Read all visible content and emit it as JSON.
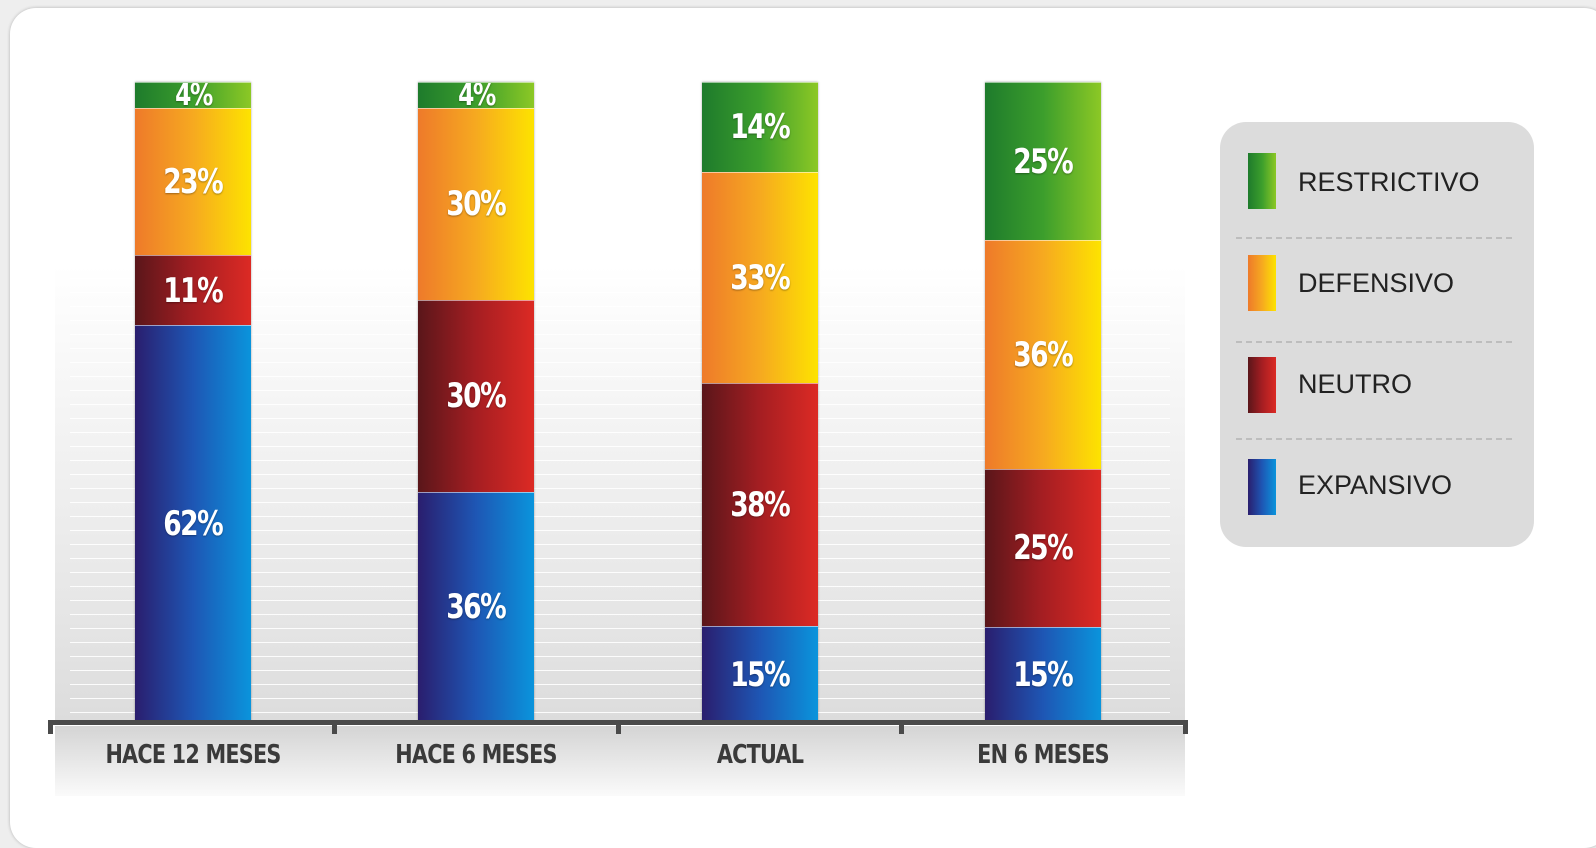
{
  "chart_data": {
    "type": "bar",
    "stacked": true,
    "categories": [
      "HACE 12 MESES",
      "HACE 6 MESES",
      "ACTUAL",
      "EN 6 MESES"
    ],
    "series": [
      {
        "name": "EXPANSIVO",
        "values": [
          62,
          36,
          15,
          15
        ],
        "labels": [
          "62%",
          "36%",
          "15%",
          "15%"
        ],
        "color": "#1e56b4"
      },
      {
        "name": "NEUTRO",
        "values": [
          11,
          30,
          38,
          25
        ],
        "labels": [
          "11%",
          "30%",
          "38%",
          "25%"
        ],
        "color": "#a51e22"
      },
      {
        "name": "DEFENSIVO",
        "values": [
          23,
          30,
          33,
          36
        ],
        "labels": [
          "23%",
          "30%",
          "33%",
          "36%"
        ],
        "color": "#f6a920"
      },
      {
        "name": "RESTRICTIVO",
        "values": [
          4,
          4,
          14,
          25
        ],
        "labels": [
          "4%",
          "4%",
          "14%",
          "25%"
        ],
        "color": "#3c9e2c"
      }
    ],
    "legend": {
      "position": "right",
      "items": [
        "RESTRICTIVO",
        "DEFENSIVO",
        "NEUTRO",
        "EXPANSIVO"
      ]
    },
    "grid": false
  }
}
